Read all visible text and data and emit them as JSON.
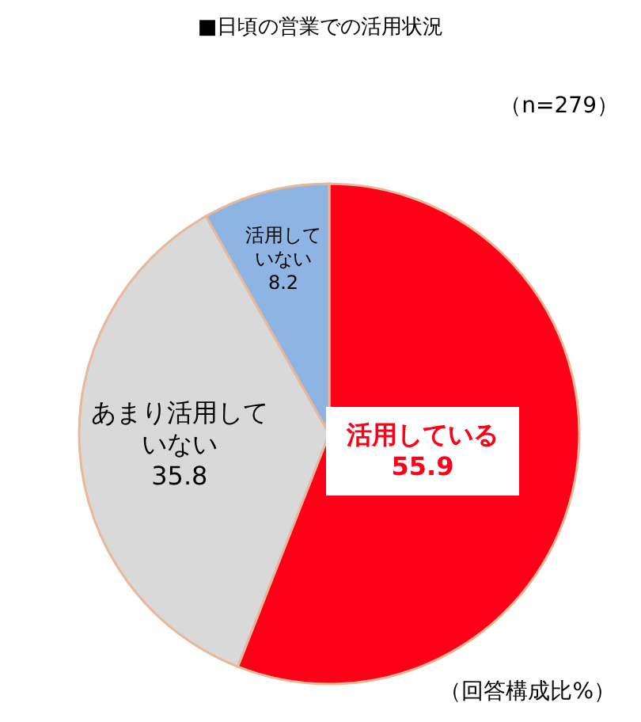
{
  "chart_data": {
    "type": "pie",
    "title": "■日頃の営業での活用状況",
    "categories": [
      "活用している",
      "あまり活用していない",
      "活用していない"
    ],
    "values": [
      55.9,
      35.8,
      8.2
    ],
    "colors": [
      "#ff0019",
      "#d9d9d9",
      "#8eb4e3"
    ],
    "data_labels": true,
    "annotations": [
      "（n=279）",
      "（回答構成比%）"
    ]
  }
}
